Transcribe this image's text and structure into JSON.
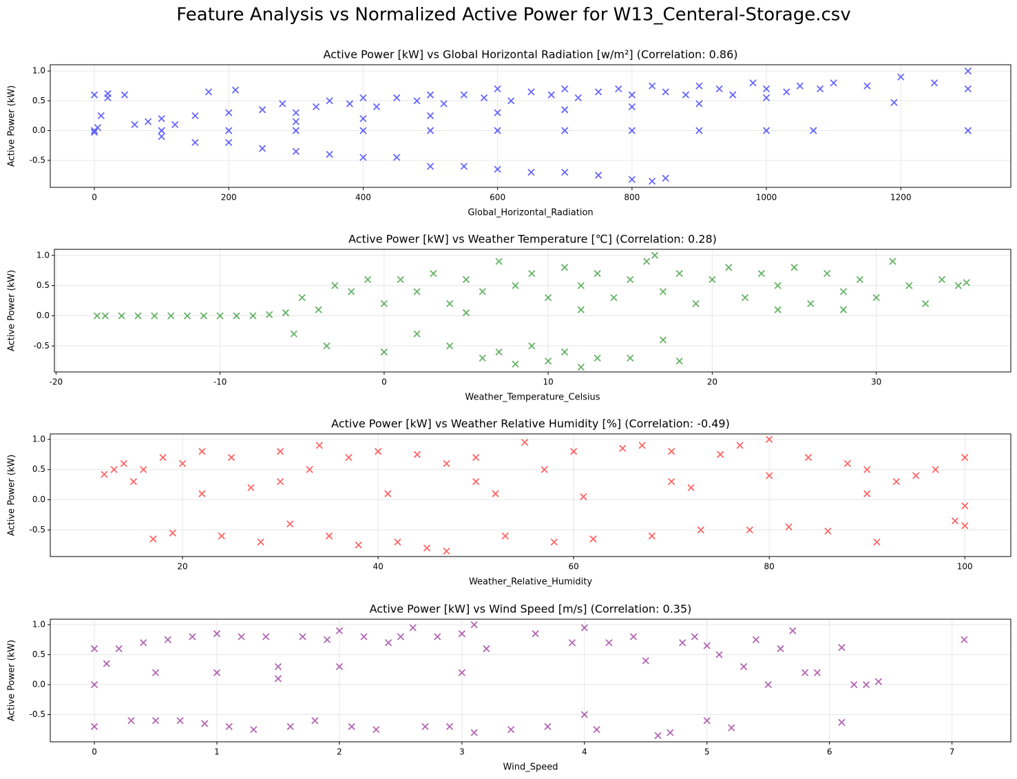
{
  "title": "Feature Analysis vs Normalized Active Power for W13_Centeral-Storage.csv",
  "chart_data": [
    {
      "type": "scatter",
      "title": "Active Power [kW] vs Global Horizontal Radiation [w/m²] (Correlation: 0.86)",
      "x_label": "Global_Horizontal_Radiation",
      "y_label": "Active Power (kW)",
      "color": "#0000ff",
      "marker": "x",
      "grid": true,
      "x": [
        0,
        0,
        0,
        5,
        10,
        20,
        20,
        45,
        60,
        80,
        100,
        120,
        150,
        170,
        200,
        210,
        250,
        280,
        300,
        330,
        350,
        380,
        400,
        420,
        450,
        480,
        500,
        520,
        550,
        580,
        600,
        620,
        650,
        680,
        700,
        720,
        750,
        780,
        800,
        830,
        850,
        880,
        900,
        930,
        950,
        980,
        1000,
        1030,
        1050,
        1080,
        1100,
        1150,
        1200,
        1190,
        1250,
        1300,
        1300,
        1300,
        100,
        200,
        300,
        400,
        500,
        600,
        700,
        800,
        900,
        1000,
        1070,
        100,
        150,
        200,
        250,
        300,
        350,
        400,
        450,
        500,
        550,
        600,
        650,
        700,
        750,
        800,
        830,
        850,
        300,
        500,
        700,
        900,
        400,
        600,
        800,
        1000
      ],
      "values": [
        0,
        0.6,
        -0.03,
        0.05,
        0.25,
        0.62,
        0.55,
        0.6,
        0.1,
        0.15,
        0.2,
        0.1,
        0.25,
        0.65,
        0.3,
        0.68,
        0.35,
        0.45,
        0.3,
        0.4,
        0.5,
        0.45,
        0.55,
        0.4,
        0.55,
        0.5,
        0.6,
        0.45,
        0.6,
        0.55,
        0.7,
        0.5,
        0.65,
        0.6,
        0.7,
        0.55,
        0.65,
        0.7,
        0.6,
        0.75,
        0.65,
        0.6,
        0.75,
        0.7,
        0.6,
        0.8,
        0.7,
        0.65,
        0.75,
        0.7,
        0.8,
        0.75,
        0.9,
        0.47,
        0.8,
        1.0,
        0.0,
        0.7,
        0,
        0,
        0,
        0,
        0,
        0,
        0,
        0,
        0,
        0,
        0,
        -0.1,
        -0.2,
        -0.2,
        -0.3,
        -0.35,
        -0.4,
        -0.45,
        -0.45,
        -0.6,
        -0.6,
        -0.65,
        -0.7,
        -0.7,
        -0.75,
        -0.82,
        -0.85,
        -0.8,
        0.15,
        0.25,
        0.35,
        0.45,
        0.2,
        0.3,
        0.4,
        0.55
      ],
      "xlim": [
        -65.6,
        1363.7
      ],
      "xticks": [
        0,
        200,
        400,
        600,
        800,
        1000,
        1200
      ],
      "ylim": [
        -0.953,
        1.105
      ],
      "yticks": [
        -0.5,
        {
          "value": 0,
          "label": "0.0"
        },
        0.5,
        {
          "value": 1,
          "label": "1.0"
        }
      ]
    },
    {
      "type": "scatter",
      "title": "Active Power [kW] vs Weather Temperature [℃] (Correlation: 0.28)",
      "x_label": "Weather_Temperature_Celsius",
      "y_label": "Active Power (kW)",
      "color": "#008000",
      "marker": "x",
      "grid": true,
      "x": [
        -17.5,
        -17,
        -16,
        -15,
        -14,
        -13,
        -12,
        -11,
        -10,
        -9,
        -8,
        -7,
        -6,
        -5.5,
        -5,
        -4,
        -3,
        -3.5,
        -2,
        -1,
        0,
        0,
        1,
        2,
        2,
        3,
        4,
        4,
        5,
        6,
        6,
        7,
        7,
        8,
        8,
        9,
        9,
        10,
        10,
        11,
        11,
        12,
        12,
        13,
        13,
        14,
        15,
        15,
        16,
        16.5,
        17,
        17,
        18,
        18,
        19,
        20,
        21,
        22,
        23,
        24,
        25,
        26,
        27,
        28,
        29,
        30,
        31,
        32,
        33,
        34,
        35,
        35.5,
        24,
        28,
        12,
        5
      ],
      "values": [
        0,
        0,
        0,
        0,
        0,
        0,
        0,
        0,
        0,
        0,
        0,
        0.02,
        0.05,
        -0.3,
        0.3,
        0.1,
        0.5,
        -0.5,
        0.4,
        0.6,
        0.2,
        -0.6,
        0.6,
        0.4,
        -0.3,
        0.7,
        0.2,
        -0.5,
        0.6,
        0.4,
        -0.7,
        0.9,
        -0.6,
        0.5,
        -0.8,
        0.7,
        -0.5,
        0.3,
        -0.75,
        0.8,
        -0.6,
        0.5,
        -0.85,
        0.7,
        -0.7,
        0.3,
        0.6,
        -0.7,
        0.9,
        1.0,
        0.4,
        -0.4,
        0.7,
        -0.75,
        0.2,
        0.6,
        0.8,
        0.3,
        0.7,
        0.5,
        0.8,
        0.2,
        0.7,
        0.4,
        0.6,
        0.3,
        0.9,
        0.5,
        0.2,
        0.6,
        0.5,
        0.55,
        0.1,
        0.1,
        0.1,
        0.05
      ],
      "xlim": [
        -20.1,
        38.2
      ],
      "xticks": [
        -20,
        -10,
        0,
        10,
        20,
        30
      ],
      "ylim": [
        -0.93,
        1.1
      ],
      "yticks": [
        -0.5,
        {
          "value": 0,
          "label": "0.0"
        },
        0.5,
        {
          "value": 1,
          "label": "1.0"
        }
      ]
    },
    {
      "type": "scatter",
      "title": "Active Power [kW] vs Weather Relative Humidity [%] (Correlation: -0.49)",
      "x_label": "Weather_Relative_Humidity",
      "y_label": "Active Power (kW)",
      "color": "#ff0000",
      "marker": "x",
      "grid": true,
      "x": [
        12,
        13,
        14,
        15,
        16,
        17,
        18,
        19,
        20,
        22,
        22,
        24,
        25,
        27,
        28,
        30,
        31,
        33,
        34,
        35,
        37,
        38,
        40,
        41,
        42,
        44,
        45,
        47,
        47,
        50,
        52,
        53,
        55,
        57,
        58,
        60,
        61,
        62,
        65,
        67,
        68,
        70,
        72,
        73,
        75,
        77,
        78,
        80,
        80,
        82,
        84,
        86,
        88,
        90,
        91,
        93,
        95,
        97,
        99,
        100,
        100,
        100,
        30,
        50,
        70,
        90
      ],
      "values": [
        0.42,
        0.5,
        0.6,
        0.3,
        0.5,
        -0.65,
        0.7,
        -0.55,
        0.6,
        0.8,
        0.1,
        -0.6,
        0.7,
        0.2,
        -0.7,
        0.8,
        -0.4,
        0.5,
        0.9,
        -0.6,
        0.7,
        -0.75,
        0.8,
        0.1,
        -0.7,
        0.75,
        -0.8,
        0.6,
        -0.85,
        0.7,
        0.1,
        -0.6,
        0.95,
        0.5,
        -0.7,
        0.8,
        0.05,
        -0.65,
        0.85,
        0.9,
        -0.6,
        0.8,
        0.2,
        -0.5,
        0.75,
        0.9,
        -0.5,
        1.0,
        0.4,
        -0.45,
        0.7,
        -0.52,
        0.6,
        0.5,
        -0.7,
        0.3,
        0.4,
        0.5,
        -0.35,
        0.7,
        -0.1,
        -0.43,
        0.3,
        0.3,
        0.3,
        0.1
      ],
      "xlim": [
        6.48,
        104.7
      ],
      "xticks": [
        20,
        40,
        60,
        80,
        100
      ],
      "ylim": [
        -0.94,
        1.09
      ],
      "yticks": [
        -0.5,
        {
          "value": 0,
          "label": "0.0"
        },
        0.5,
        {
          "value": 1,
          "label": "1.0"
        }
      ]
    },
    {
      "type": "scatter",
      "title": "Active Power [kW] vs Wind Speed [m/s] (Correlation: 0.35)",
      "x_label": "Wind_Speed",
      "y_label": "Active Power (kW)",
      "color": "#800080",
      "marker": "x",
      "grid": true,
      "x": [
        0,
        0,
        0,
        0.1,
        0.2,
        0.3,
        0.4,
        0.5,
        0.6,
        0.7,
        0.8,
        0.9,
        1.0,
        1.1,
        1.2,
        1.3,
        1.4,
        1.5,
        1.6,
        1.7,
        1.8,
        1.9,
        2.0,
        2.1,
        2.2,
        2.3,
        2.4,
        2.5,
        2.6,
        2.7,
        2.8,
        2.9,
        3.0,
        3.1,
        3.1,
        3.2,
        3.4,
        3.6,
        3.7,
        3.9,
        4.0,
        4.0,
        4.1,
        4.2,
        4.4,
        4.5,
        4.6,
        4.7,
        4.8,
        4.9,
        5.0,
        5.0,
        5.1,
        5.2,
        5.3,
        5.4,
        5.5,
        5.6,
        5.7,
        5.8,
        5.9,
        6.1,
        6.1,
        6.2,
        6.3,
        6.4,
        7.1,
        1,
        2,
        3,
        0.5,
        1.5
      ],
      "values": [
        0.6,
        -0.7,
        0,
        0.35,
        0.6,
        -0.6,
        0.7,
        -0.6,
        0.75,
        -0.6,
        0.8,
        -0.65,
        0.85,
        -0.7,
        0.8,
        -0.75,
        0.8,
        0.3,
        -0.7,
        0.8,
        -0.6,
        0.75,
        0.9,
        -0.7,
        0.8,
        -0.75,
        0.7,
        0.8,
        0.95,
        -0.7,
        0.8,
        -0.7,
        0.85,
        1.0,
        -0.8,
        0.6,
        -0.75,
        0.85,
        -0.7,
        0.7,
        0.95,
        -0.5,
        -0.75,
        0.7,
        0.8,
        0.4,
        -0.85,
        -0.8,
        0.7,
        0.8,
        0.65,
        -0.6,
        0.5,
        -0.72,
        0.3,
        0.75,
        0,
        0.6,
        0.9,
        0.2,
        0.2,
        0.62,
        -0.63,
        0,
        0,
        0.05,
        0.75,
        0.2,
        0.3,
        0.2,
        0.2,
        0.1
      ],
      "xlim": [
        -0.36,
        7.48
      ],
      "xticks": [
        0,
        1,
        2,
        3,
        4,
        5,
        6,
        7
      ],
      "ylim": [
        -0.954,
        1.092
      ],
      "yticks": [
        -0.5,
        {
          "value": 0,
          "label": "0.0"
        },
        0.5,
        {
          "value": 1,
          "label": "1.0"
        }
      ]
    }
  ]
}
